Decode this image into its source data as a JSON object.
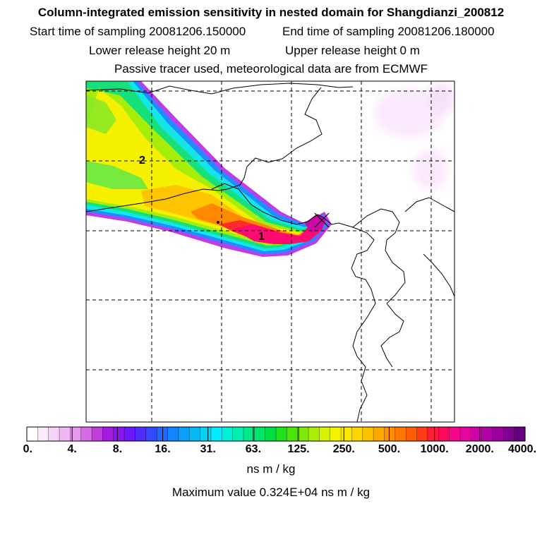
{
  "header": {
    "title": "Column-integrated emission sensitivity in nested domain for Shangdianzi_200812",
    "start_label": "Start time of sampling 20081206.150000",
    "end_label": "End time of sampling 20081206.180000",
    "lower_label": "Lower release height   20 m",
    "upper_label": "Upper release height    0 m",
    "note": "Passive tracer used, meteorological data are from ECMWF"
  },
  "chart_data": {
    "type": "heatmap",
    "title": "Column-integrated emission sensitivity in nested domain for Shangdianzi_200812",
    "units": "ns m / kg",
    "colorbar_ticks": [
      "0.",
      "4.",
      "8.",
      "16.",
      "31.",
      "63.",
      "125.",
      "250.",
      "500.",
      "1000.",
      "2000.",
      "4000."
    ],
    "colorbar_levels": [
      0,
      4,
      8,
      16,
      31,
      63,
      125,
      250,
      500,
      1000,
      2000,
      4000
    ],
    "colorbar_colors": [
      "#ffffff",
      "#fbeafc",
      "#f6d3f8",
      "#f0b8f3",
      "#e797ee",
      "#d56ae4",
      "#c23cd9",
      "#a51ae3",
      "#8a14f2",
      "#6c18ff",
      "#4d2eff",
      "#3448ff",
      "#1f68ff",
      "#1285ff",
      "#0aa0fa",
      "#08b8f5",
      "#06d2f2",
      "#00ecff",
      "#00f0dc",
      "#00eeb0",
      "#00e98a",
      "#00e46a",
      "#00df40",
      "#1fe11a",
      "#4ce40a",
      "#7ee808",
      "#abee05",
      "#d8f300",
      "#f4f400",
      "#ffe800",
      "#ffd500",
      "#ffc000",
      "#ffa800",
      "#ff9000",
      "#ff7700",
      "#ff5d00",
      "#ff3c14",
      "#ff1d3a",
      "#ff0862",
      "#f8068a",
      "#e404a0",
      "#cc03aa",
      "#b302a8",
      "#9a019e",
      "#800190",
      "#660080"
    ],
    "annotations": [
      {
        "label": "1"
      },
      {
        "label": "2"
      }
    ],
    "release_site": "Shangdianzi",
    "maximum_value": 3240
  },
  "colorbar": {
    "units_label": "ns m / kg",
    "max_label": "Maximum value  0.324E+04 ns m / kg"
  },
  "colors": {
    "grid": "#000000",
    "coast": "#000000",
    "background": "#ffffff"
  }
}
